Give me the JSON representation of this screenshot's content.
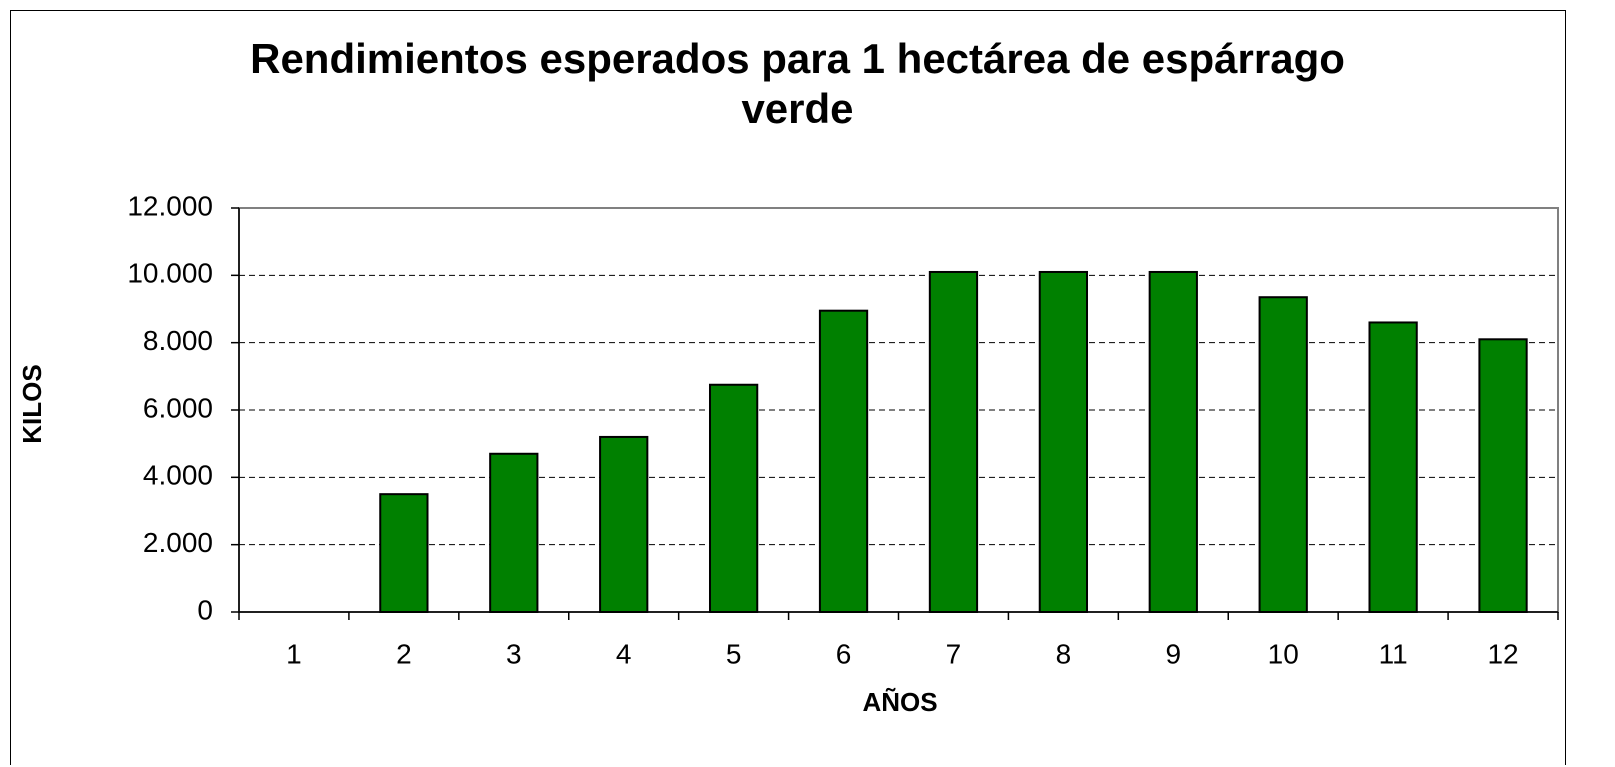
{
  "chart_data": {
    "type": "bar",
    "title": "Rendimientos esperados para 1 hectárea de espárrago verde",
    "x_label": "AÑOS",
    "y_label": "KILOS",
    "categories": [
      "1",
      "2",
      "3",
      "4",
      "5",
      "6",
      "7",
      "8",
      "9",
      "10",
      "11",
      "12"
    ],
    "values": [
      0,
      3500,
      4700,
      5200,
      6750,
      8950,
      10100,
      10100,
      10100,
      9350,
      8600,
      8100
    ],
    "color": "#008000",
    "ylim": [
      0,
      12000
    ],
    "yticks": [
      0,
      {
        "value": 2000,
        "label": "2.000"
      },
      {
        "value": 4000,
        "label": "4.000"
      },
      {
        "value": 6000,
        "label": "6.000"
      },
      {
        "value": 8000,
        "label": "8.000"
      },
      {
        "value": 10000,
        "label": "10.000"
      },
      {
        "value": 12000,
        "label": "12.000"
      }
    ],
    "grid": true
  }
}
